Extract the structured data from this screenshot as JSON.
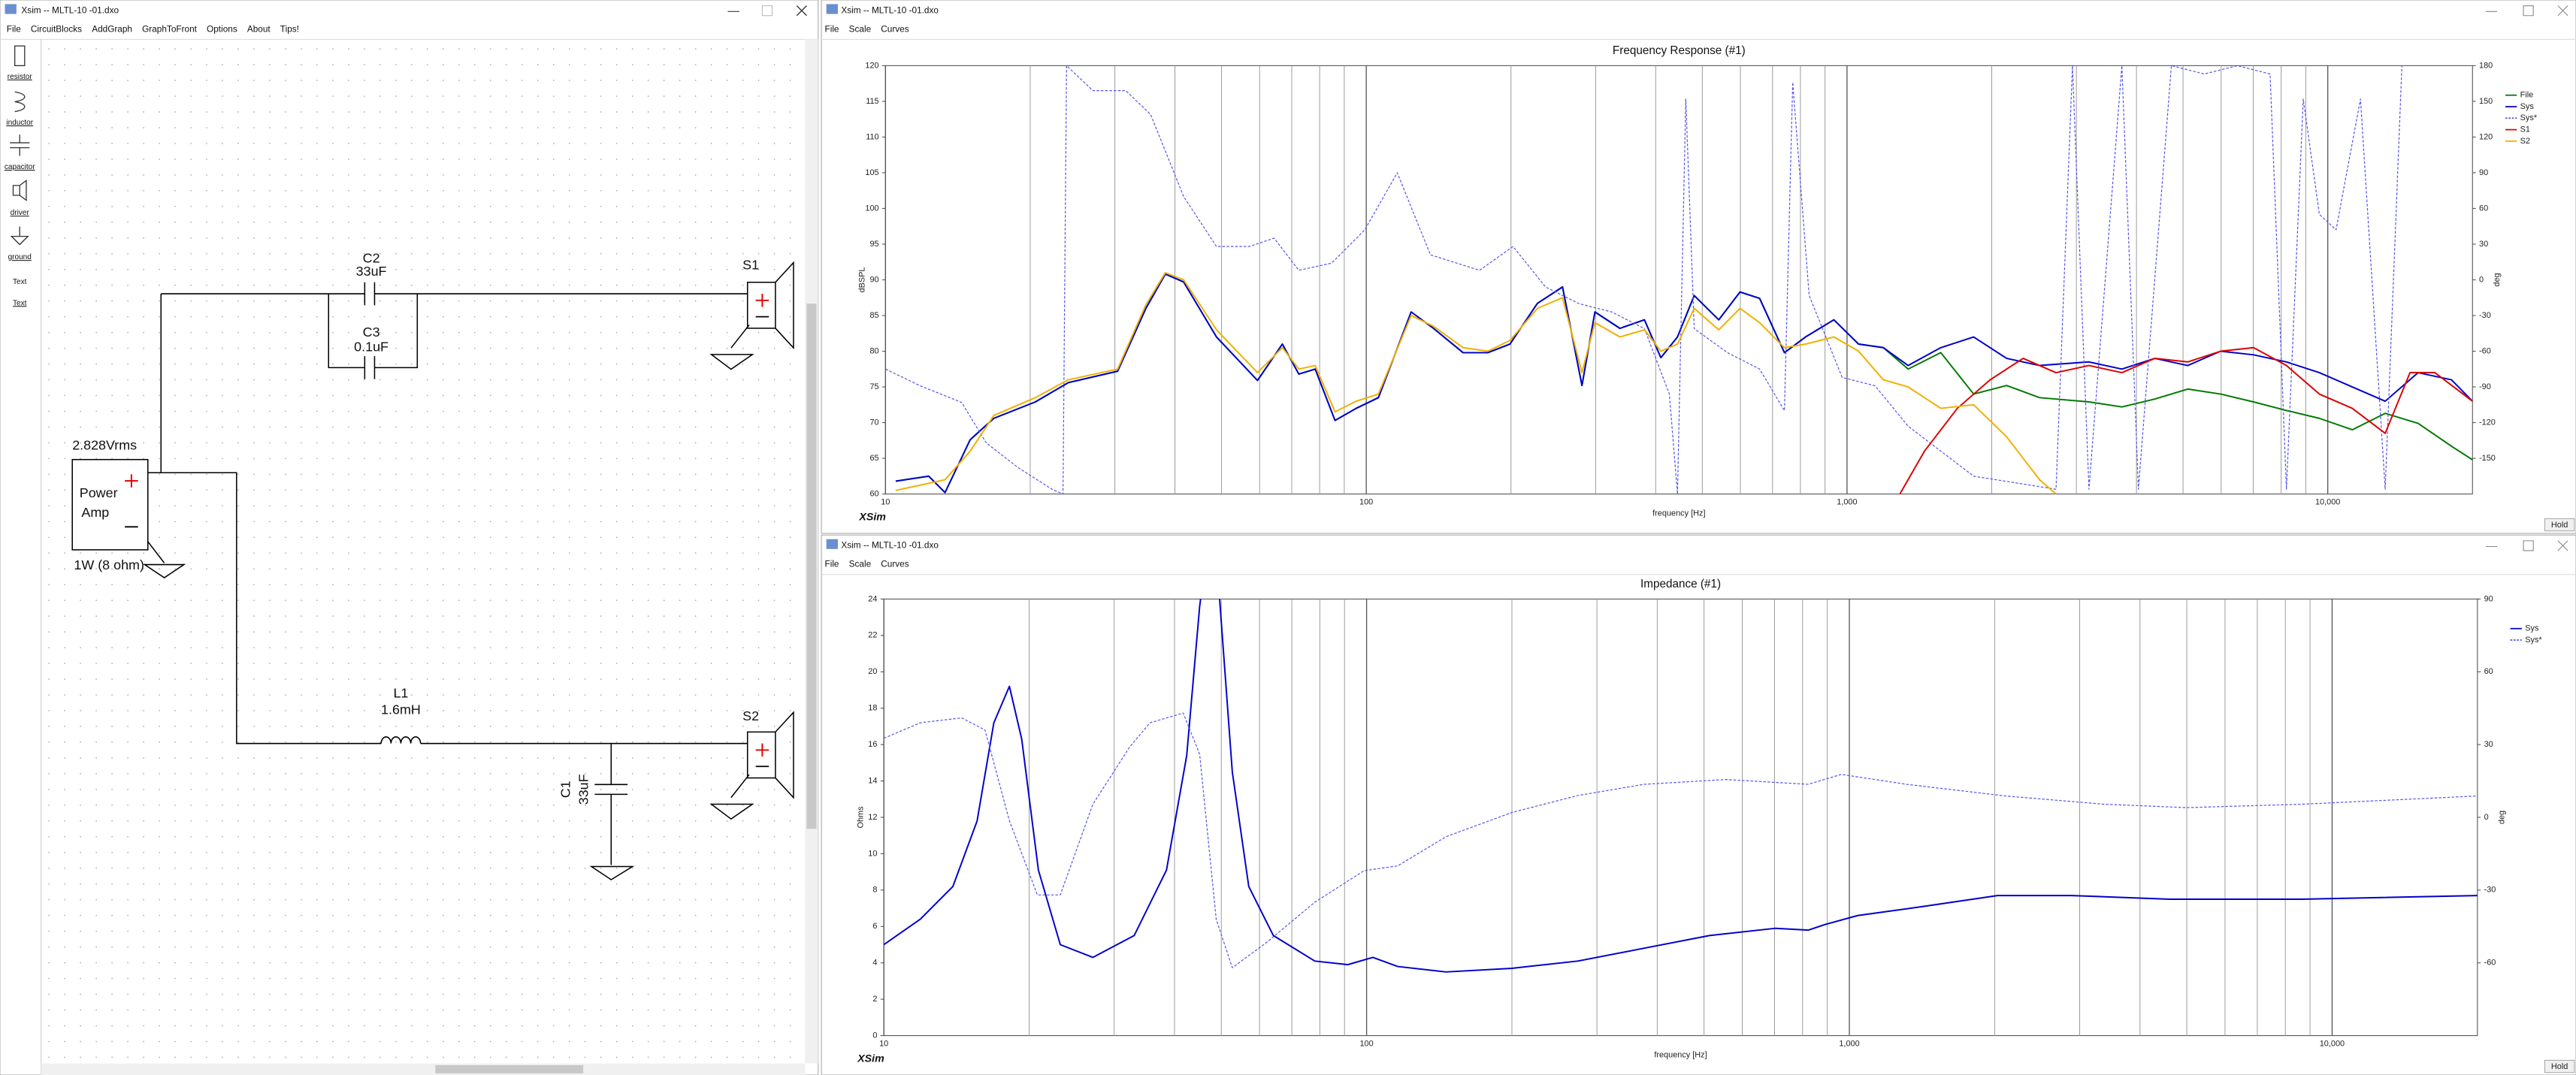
{
  "window": {
    "title": "Xsim -- MLTL-10 -01.dxo",
    "menu": [
      "File",
      "CircuitBlocks",
      "AddGraph",
      "GraphToFront",
      "Options",
      "About",
      "Tips!"
    ]
  },
  "toolbar": [
    "resistor",
    "inductor",
    "capacitor",
    "driver",
    "ground",
    "Text",
    "Text"
  ],
  "schematic": {
    "components": [
      {
        "name": "C2",
        "value": "33uF"
      },
      {
        "name": "C3",
        "value": "0.1uF"
      },
      {
        "name": "L1",
        "value": "1.6mH"
      },
      {
        "name": "C1",
        "value": "33uF"
      },
      {
        "name": "S1"
      },
      {
        "name": "S2"
      }
    ],
    "amp": {
      "voltage": "2.828Vrms",
      "label_lines": [
        "Power",
        "Amp"
      ],
      "rating": "1W (8 ohm)"
    }
  },
  "graph_windows": [
    {
      "title": "Xsim -- MLTL-10 -01.dxo",
      "menu": [
        "File",
        "Scale",
        "Curves"
      ],
      "button": "Hold",
      "brand": "XSim"
    },
    {
      "title": "Xsim -- MLTL-10 -01.dxo",
      "menu": [
        "File",
        "Scale",
        "Curves"
      ],
      "button": "Hold",
      "brand": "XSim"
    }
  ],
  "chart_data": [
    {
      "type": "line",
      "title": "Frequency Response (#1)",
      "xlabel": "frequency [Hz]",
      "ylabel": "dBSPL",
      "y2label": "deg",
      "xscale": "log",
      "grid": "x",
      "legend": "right",
      "xlim": [
        10,
        20000
      ],
      "xticks": [
        10,
        100,
        {
          "value": 1000,
          "label": "1,000"
        },
        {
          "value": 10000,
          "label": "10,000"
        }
      ],
      "xminor": [
        20,
        30,
        40,
        50,
        60,
        70,
        80,
        90,
        200,
        300,
        400,
        500,
        600,
        700,
        800,
        900,
        2000,
        3000,
        4000,
        5000,
        6000,
        7000,
        8000,
        9000
      ],
      "ylim": [
        60,
        120
      ],
      "yticks": [
        60,
        65,
        70,
        75,
        80,
        85,
        90,
        95,
        100,
        105,
        110,
        115,
        120
      ],
      "y2lim": [
        -180,
        180
      ],
      "y2ticks": [
        -150,
        -120,
        -90,
        -60,
        -30,
        0,
        30,
        60,
        90,
        120,
        150,
        180
      ],
      "series": [
        {
          "name": "File",
          "color": "#007a00",
          "x": [
            10.5,
            12.3,
            13.3,
            15,
            16.8,
            20.5,
            24,
            30.4,
            34.8,
            38.2,
            41.7,
            48.8,
            59.4,
            66.9,
            72.4,
            78.3,
            86.1,
            95.3,
            106,
            124,
            138,
            159,
            179,
            199,
            227,
            256,
            281,
            299,
            337,
            379,
            410,
            444,
            481,
            541,
            599,
            658,
            741,
            820,
            939,
            1057,
            1190,
            1340,
            1567,
            1834,
            2148,
            2515,
            3186,
            3730,
            4367,
            5113,
            5986,
            7008,
            8204,
            9605,
            11245,
            13165,
            15413,
            18080,
            20000
          ],
          "values": [
            61.8,
            62.5,
            60.2,
            67.6,
            70.6,
            72.9,
            75.6,
            77.2,
            86,
            90.8,
            89.7,
            82,
            75.9,
            81,
            76.8,
            77.5,
            70.3,
            72,
            73.5,
            85.5,
            83.2,
            79.8,
            79.8,
            81,
            86.7,
            89,
            75.2,
            85.5,
            83.2,
            84.4,
            79.1,
            82,
            87.8,
            84.4,
            88.3,
            87.4,
            79.8,
            82,
            84.4,
            81,
            80.5,
            77.5,
            79.8,
            74,
            75.2,
            73.5,
            72.9,
            72.2,
            73.3,
            74.7,
            74,
            72.9,
            71.7,
            70.6,
            69,
            71.3,
            69.9,
            66.7,
            64.8
          ]
        },
        {
          "name": "Sys",
          "color": "#0000cc",
          "x": [
            10.5,
            12.3,
            13.3,
            15,
            16.8,
            20.5,
            24,
            30.4,
            34.8,
            38.2,
            41.7,
            48.8,
            59.4,
            66.9,
            72.4,
            78.3,
            86.1,
            95.3,
            106,
            124,
            138,
            159,
            179,
            199,
            227,
            256,
            281,
            299,
            337,
            379,
            410,
            444,
            481,
            541,
            599,
            658,
            741,
            820,
            939,
            1057,
            1190,
            1340,
            1567,
            1834,
            2148,
            2515,
            3186,
            3730,
            4367,
            5113,
            5986,
            7008,
            8204,
            9605,
            11245,
            13165,
            15413,
            18080,
            20000
          ],
          "values": [
            61.8,
            62.5,
            60.2,
            67.6,
            70.6,
            72.9,
            75.6,
            77.2,
            86,
            90.8,
            89.7,
            82,
            75.9,
            81,
            76.8,
            77.5,
            70.3,
            72,
            73.5,
            85.5,
            83.2,
            79.8,
            79.8,
            81,
            86.7,
            89,
            75.2,
            85.5,
            83.2,
            84.4,
            79.1,
            82,
            87.8,
            84.4,
            88.3,
            87.4,
            79.8,
            82,
            84.4,
            81,
            80.5,
            78,
            80.5,
            82,
            79,
            78,
            78.5,
            77.5,
            79,
            78,
            80,
            79.5,
            78.5,
            77,
            75,
            73,
            77,
            76,
            73
          ]
        },
        {
          "name": "Sys*",
          "color": "#5555ee",
          "style": "dashed",
          "axis": "y2",
          "x": [
            10,
            11.8,
            14.4,
            16.2,
            18.9,
            22.2,
            23.4,
            23.8,
            27,
            31.6,
            35.6,
            41.7,
            48.8,
            57.1,
            64.3,
            72.4,
            84.7,
            99.3,
            116,
            136,
            172,
            202,
            236,
            277,
            324,
            379,
            427,
            444,
            462,
            481,
            563,
            658,
            741,
            771,
            834,
            977,
            1143,
            1340,
            1834,
            2721,
            2944,
            3186,
            3730,
            4037,
            4728,
            5537,
            6486,
            7586,
            8204,
            8892,
            9605,
            10404,
            11696,
            13165,
            14262
          ],
          "values": [
            -75,
            -89,
            -103,
            -137,
            -158,
            -176,
            -180,
            180,
            159,
            159,
            139,
            70,
            28,
            28,
            35,
            8,
            14,
            42,
            90,
            21,
            8,
            28,
            -6,
            -20,
            -27,
            -41,
            -96,
            -180,
            152,
            -41,
            -61,
            -75,
            -110,
            166,
            -13,
            -82,
            -89,
            -123,
            -165,
            -176,
            180,
            -176,
            180,
            -176,
            180,
            173,
            180,
            173,
            -176,
            152,
            55,
            42,
            152,
            -176,
            180
          ]
        },
        {
          "name": "S1",
          "color": "#dd0000",
          "x": [
            1288,
            1449,
            1696,
            1985,
            2324,
            2721,
            3186,
            3730,
            4367,
            5113,
            5986,
            7008,
            8204,
            9605,
            11245,
            13165,
            14826,
            16702,
            20000
          ],
          "values": [
            60,
            66,
            72,
            76,
            79,
            77,
            78,
            77,
            79,
            78.5,
            80,
            80.5,
            78,
            74,
            72,
            68.5,
            77,
            77,
            73
          ]
        },
        {
          "name": "S2",
          "color": "#f0b000",
          "x": [
            10.5,
            12.3,
            13.3,
            15,
            16.8,
            20.5,
            24,
            30.4,
            34.8,
            38.2,
            41.7,
            48.8,
            59.4,
            66.9,
            72.4,
            78.3,
            86.1,
            95.3,
            106,
            124,
            138,
            159,
            179,
            199,
            227,
            256,
            281,
            299,
            337,
            379,
            410,
            444,
            481,
            541,
            599,
            658,
            741,
            820,
            939,
            1057,
            1190,
            1340,
            1567,
            1834,
            2148,
            2515,
            2721
          ],
          "values": [
            60.5,
            61.5,
            62,
            66,
            71,
            73.5,
            76,
            77.5,
            86.5,
            91,
            90,
            83,
            77,
            80.5,
            77.5,
            78,
            71.5,
            73,
            74,
            85,
            83.5,
            80.5,
            80,
            81.5,
            86,
            87.5,
            77,
            84,
            82,
            83,
            80,
            81,
            86,
            83,
            86,
            84,
            80.5,
            81,
            82,
            80,
            76,
            75,
            72,
            72.5,
            68,
            62,
            60
          ]
        }
      ]
    },
    {
      "type": "line",
      "title": "Impedance (#1)",
      "xlabel": "frequency [Hz]",
      "ylabel": "Ohms",
      "y2label": "deg",
      "xscale": "log",
      "grid": "x",
      "legend": "right",
      "xlim": [
        10,
        20000
      ],
      "xticks": [
        10,
        100,
        {
          "value": 1000,
          "label": "1,000"
        },
        {
          "value": 10000,
          "label": "10,000"
        }
      ],
      "xminor": [
        20,
        30,
        40,
        50,
        60,
        70,
        80,
        90,
        200,
        300,
        400,
        500,
        600,
        700,
        800,
        900,
        2000,
        3000,
        4000,
        5000,
        6000,
        7000,
        8000,
        9000
      ],
      "ylim": [
        0,
        24
      ],
      "yticks": [
        0,
        2,
        4,
        6,
        8,
        10,
        12,
        14,
        16,
        18,
        20,
        22,
        24
      ],
      "y2lim": [
        -90,
        90
      ],
      "y2ticks": [
        -60,
        -30,
        0,
        30,
        60,
        90
      ],
      "series": [
        {
          "name": "Sys",
          "color": "#0000cc",
          "x": [
            10,
            11.9,
            13.9,
            15.6,
            16.9,
            18.2,
            19.3,
            20.9,
            23.2,
            27.1,
            33,
            38.5,
            42.4,
            45.1,
            46.9,
            49.6,
            52.7,
            57,
            64.1,
            78.1,
            91.4,
            103,
            116,
            146,
            200,
            274,
            375,
            513,
            703,
            822,
            889,
            1040,
            1423,
            2027,
            2884,
            4613,
            8645,
            20000
          ],
          "values": [
            5,
            6.4,
            8.2,
            11.8,
            17.2,
            19.2,
            16.3,
            9.1,
            5,
            4.3,
            5.5,
            9.1,
            15.4,
            23.6,
            27,
            24,
            14.5,
            8.2,
            5.5,
            4.1,
            3.9,
            4.3,
            3.8,
            3.5,
            3.7,
            4.1,
            4.8,
            5.5,
            5.9,
            5.8,
            6.1,
            6.6,
            7.1,
            7.7,
            7.7,
            7.5,
            7.5,
            7.7
          ]
        },
        {
          "name": "Sys*",
          "color": "#5555ee",
          "style": "dashed",
          "axis": "y2",
          "x": [
            10,
            11.9,
            14.5,
            16.2,
            18.2,
            20.8,
            23.2,
            27.1,
            32.3,
            35.6,
            41.7,
            45.1,
            48.8,
            52.7,
            61.7,
            78.1,
            98.8,
            116,
            146,
            200,
            274,
            375,
            555,
            822,
            962,
            1315,
            2108,
            3373,
            4989,
            8645,
            20000
          ],
          "values": [
            32.6,
            39,
            41,
            36,
            -1.4,
            -32,
            -32,
            5.4,
            29,
            39,
            43,
            26,
            -42,
            -62,
            -52,
            -35,
            -22,
            -20,
            -8,
            2,
            9,
            13.6,
            15.6,
            13.6,
            17.7,
            13.6,
            8.8,
            5.4,
            4,
            5.4,
            8.8
          ]
        }
      ]
    }
  ]
}
